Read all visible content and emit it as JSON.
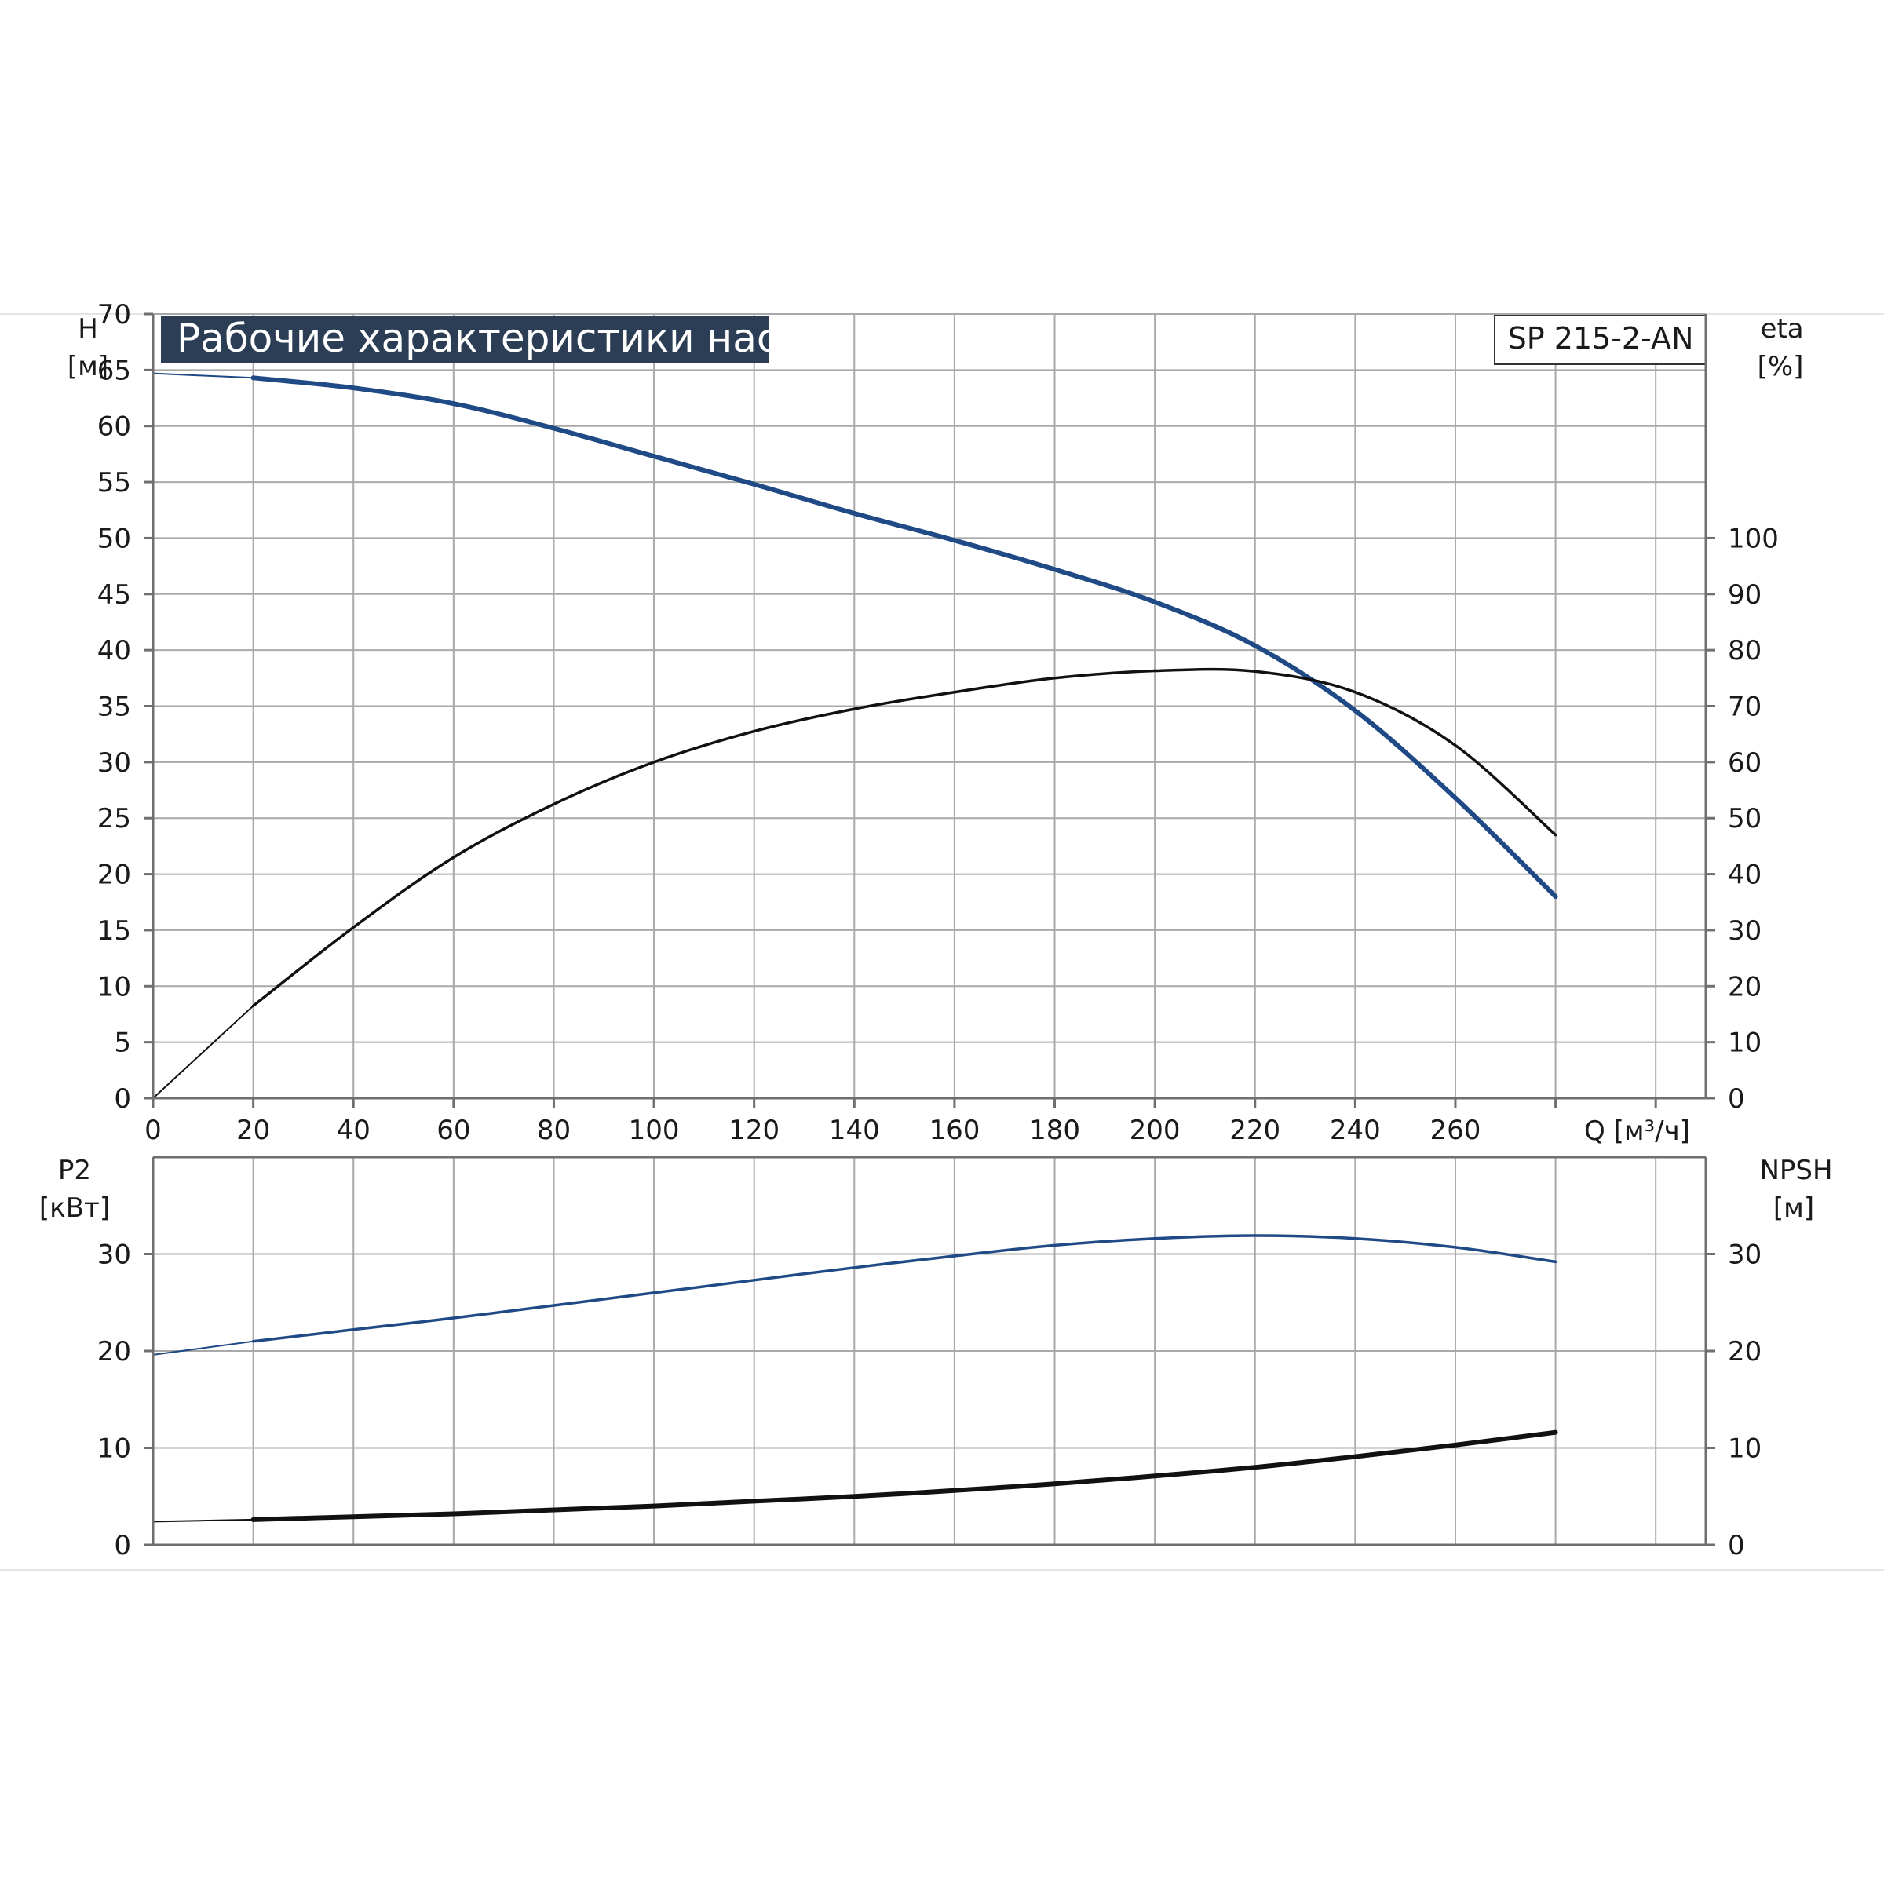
{
  "header": {
    "title": "Рабочие характеристики насоса",
    "model": "SP 215-2-AN"
  },
  "colors": {
    "blue": "#1f4a86",
    "black": "#111111",
    "title_bg": "#2c3e55",
    "grid": "#a9a9a9"
  },
  "axes": {
    "top_left": {
      "label": "H",
      "unit": "[м]",
      "ticks": [
        "0",
        "5",
        "10",
        "15",
        "20",
        "25",
        "30",
        "35",
        "40",
        "45",
        "50",
        "55",
        "60",
        "65",
        "70"
      ]
    },
    "top_right": {
      "label": "eta",
      "unit": "[%]",
      "ticks": [
        "0",
        "10",
        "20",
        "30",
        "40",
        "50",
        "60",
        "70",
        "80",
        "90",
        "100"
      ]
    },
    "x": {
      "label": "Q [м³/ч]",
      "ticks": [
        "0",
        "20",
        "40",
        "60",
        "80",
        "100",
        "120",
        "140",
        "160",
        "180",
        "200",
        "220",
        "240",
        "260"
      ]
    },
    "bottom_left": {
      "label": "P2",
      "unit": "[кВт]",
      "ticks": [
        "0",
        "10",
        "20",
        "30"
      ]
    },
    "bottom_right": {
      "label": "NPSH",
      "unit": "[м]",
      "ticks": [
        "0",
        "10",
        "20",
        "30"
      ]
    }
  },
  "chart_data": [
    {
      "type": "line",
      "panel": "top",
      "x_unit": "м³/ч",
      "xlim": [
        0,
        310
      ],
      "ylim_left": [
        0,
        70
      ],
      "ylim_right": [
        0,
        140
      ],
      "grid": true,
      "series": [
        {
          "axis": "left",
          "color": "#1f4a86",
          "x": [
            0,
            20,
            40,
            60,
            80,
            100,
            120,
            140,
            160,
            180,
            200,
            220,
            240,
            260,
            280
          ],
          "y": [
            64.7,
            64.3,
            63.4,
            62.0,
            59.8,
            57.3,
            54.8,
            52.2,
            49.8,
            47.2,
            44.3,
            40.4,
            34.6,
            26.8,
            18.0
          ]
        },
        {
          "axis": "right",
          "color": "#111111",
          "x": [
            0,
            20,
            40,
            60,
            80,
            100,
            120,
            140,
            160,
            180,
            200,
            220,
            240,
            260,
            280
          ],
          "y": [
            0,
            16.5,
            30.5,
            43.0,
            52.5,
            60.0,
            65.5,
            69.5,
            72.5,
            75.0,
            76.3,
            76.2,
            72.5,
            63.0,
            47.0
          ]
        }
      ]
    },
    {
      "type": "line",
      "panel": "bottom",
      "x_unit": "м³/ч",
      "xlim": [
        0,
        310
      ],
      "ylim_left": [
        0,
        40
      ],
      "ylim_right": [
        0,
        40
      ],
      "grid": true,
      "series": [
        {
          "axis": "left",
          "color": "#1f4a86",
          "x": [
            0,
            20,
            40,
            60,
            80,
            100,
            120,
            140,
            160,
            180,
            200,
            220,
            240,
            260,
            280
          ],
          "y": [
            19.6,
            21.0,
            22.2,
            23.4,
            24.7,
            26.0,
            27.3,
            28.6,
            29.8,
            30.9,
            31.6,
            31.9,
            31.6,
            30.7,
            29.2
          ]
        },
        {
          "axis": "right",
          "color": "#111111",
          "x": [
            0,
            20,
            40,
            60,
            80,
            100,
            120,
            140,
            160,
            180,
            200,
            220,
            240,
            260,
            280
          ],
          "y": [
            2.4,
            2.6,
            2.9,
            3.2,
            3.6,
            4.0,
            4.5,
            5.0,
            5.6,
            6.3,
            7.1,
            8.0,
            9.1,
            10.3,
            11.6
          ]
        }
      ]
    }
  ]
}
